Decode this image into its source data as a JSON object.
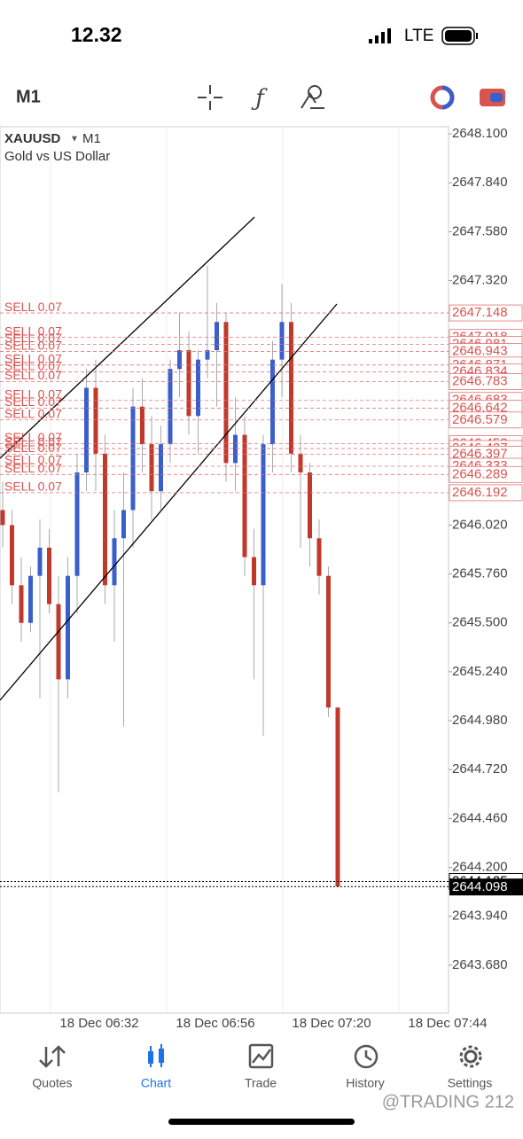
{
  "status_bar": {
    "time": "12.32",
    "network": "LTE"
  },
  "toolbar": {
    "timeframe": "M1"
  },
  "chart_data": {
    "type": "candlestick",
    "symbol": "XAUUSD",
    "timeframe": "M1",
    "description": "Gold vs US Dollar",
    "ylim": [
      2643.425,
      2648.138
    ],
    "yticks": [
      {
        "value": 2648.1,
        "label": "2648.100"
      },
      {
        "value": 2647.84,
        "label": "2647.840"
      },
      {
        "value": 2647.58,
        "label": "2647.580"
      },
      {
        "value": 2647.32,
        "label": "2647.320"
      },
      {
        "value": 2646.02,
        "label": "2646.020"
      },
      {
        "value": 2645.76,
        "label": "2645.760"
      },
      {
        "value": 2645.5,
        "label": "2645.500"
      },
      {
        "value": 2645.24,
        "label": "2645.240"
      },
      {
        "value": 2644.98,
        "label": "2644.980"
      },
      {
        "value": 2644.72,
        "label": "2644.720"
      },
      {
        "value": 2644.46,
        "label": "2644.460"
      },
      {
        "value": 2644.2,
        "label": "2644.200"
      },
      {
        "value": 2643.94,
        "label": "2643.940"
      },
      {
        "value": 2643.68,
        "label": "2643.680"
      }
    ],
    "x_labels": [
      "18 Dec 06:32",
      "18 Dec 06:56",
      "18 Dec 07:20",
      "18 Dec 07:44"
    ],
    "up_color": "#3a5fcd",
    "down_color": "#c0392b",
    "open": [
      2646.1,
      2646.02,
      2645.7,
      2645.5,
      2645.75,
      2645.9,
      2645.6,
      2645.2,
      2645.75,
      2646.3,
      2646.75,
      2646.4,
      2645.7,
      2645.95,
      2646.1,
      2646.65,
      2646.45,
      2646.2,
      2646.45,
      2646.85,
      2646.95,
      2646.6,
      2646.9,
      2646.95,
      2647.1,
      2646.35,
      2646.5,
      2645.85,
      2645.7,
      2646.45,
      2646.9,
      2647.1,
      2646.4,
      2646.3,
      2645.95,
      2645.75,
      2645.05
    ],
    "high": [
      2646.25,
      2646.1,
      2645.85,
      2645.8,
      2646.05,
      2646.0,
      2645.75,
      2645.85,
      2646.4,
      2646.85,
      2646.9,
      2646.5,
      2646.1,
      2646.3,
      2646.75,
      2646.8,
      2646.6,
      2646.55,
      2646.9,
      2647.15,
      2647.05,
      2646.95,
      2647.4,
      2647.2,
      2647.15,
      2646.7,
      2646.6,
      2646.0,
      2646.5,
      2647.0,
      2647.3,
      2647.2,
      2646.5,
      2646.35,
      2646.05,
      2645.8,
      2645.05
    ],
    "low": [
      2645.9,
      2645.6,
      2645.4,
      2645.45,
      2645.1,
      2645.55,
      2644.6,
      2645.1,
      2645.55,
      2646.2,
      2646.2,
      2645.6,
      2645.4,
      2644.95,
      2645.9,
      2646.3,
      2646.05,
      2646.1,
      2646.35,
      2646.7,
      2646.5,
      2646.4,
      2646.8,
      2646.65,
      2646.25,
      2646.2,
      2645.75,
      2645.2,
      2644.9,
      2646.3,
      2646.7,
      2646.3,
      2645.9,
      2645.8,
      2645.65,
      2645.0,
      2644.098
    ],
    "close": [
      2646.02,
      2645.7,
      2645.5,
      2645.75,
      2645.9,
      2645.6,
      2645.2,
      2645.75,
      2646.3,
      2646.75,
      2646.4,
      2645.7,
      2645.95,
      2646.1,
      2646.65,
      2646.45,
      2646.2,
      2646.45,
      2646.85,
      2646.95,
      2646.6,
      2646.9,
      2646.95,
      2647.1,
      2646.35,
      2646.5,
      2645.85,
      2645.7,
      2646.45,
      2646.9,
      2647.1,
      2646.4,
      2646.3,
      2645.95,
      2645.75,
      2645.05,
      2644.098
    ],
    "orders": [
      {
        "label": "SELL 0.07",
        "price": 2647.148
      },
      {
        "label": "SELL 0.07",
        "price": 2647.018
      },
      {
        "label": "SELL 0.07",
        "price": 2646.981
      },
      {
        "label": "SELL 0.07",
        "price": 2646.943
      },
      {
        "label": "SELL 0.07",
        "price": 2646.871
      },
      {
        "label": "SELL 0.07",
        "price": 2646.834
      },
      {
        "label": "SELL 0.07",
        "price": 2646.783
      },
      {
        "label": "SELL 0.07",
        "price": 2646.683
      },
      {
        "label": "SELL 0.07",
        "price": 2646.642
      },
      {
        "label": "SELL 0.07",
        "price": 2646.579
      },
      {
        "label": "SELL 0.07",
        "price": 2646.453
      },
      {
        "label": "SELL 0.07",
        "price": 2646.427
      },
      {
        "label": "SELL 0.07",
        "price": 2646.397
      },
      {
        "label": "SELL 0.07",
        "price": 2646.333
      },
      {
        "label": "SELL 0.07",
        "price": 2646.289
      },
      {
        "label": "SELL 0.07",
        "price": 2646.192
      }
    ],
    "ask_price": 2644.125,
    "current_price": 2644.098
  },
  "nav": [
    "Quotes",
    "Chart",
    "Trade",
    "History",
    "Settings"
  ],
  "watermark": "@TRADING 212"
}
